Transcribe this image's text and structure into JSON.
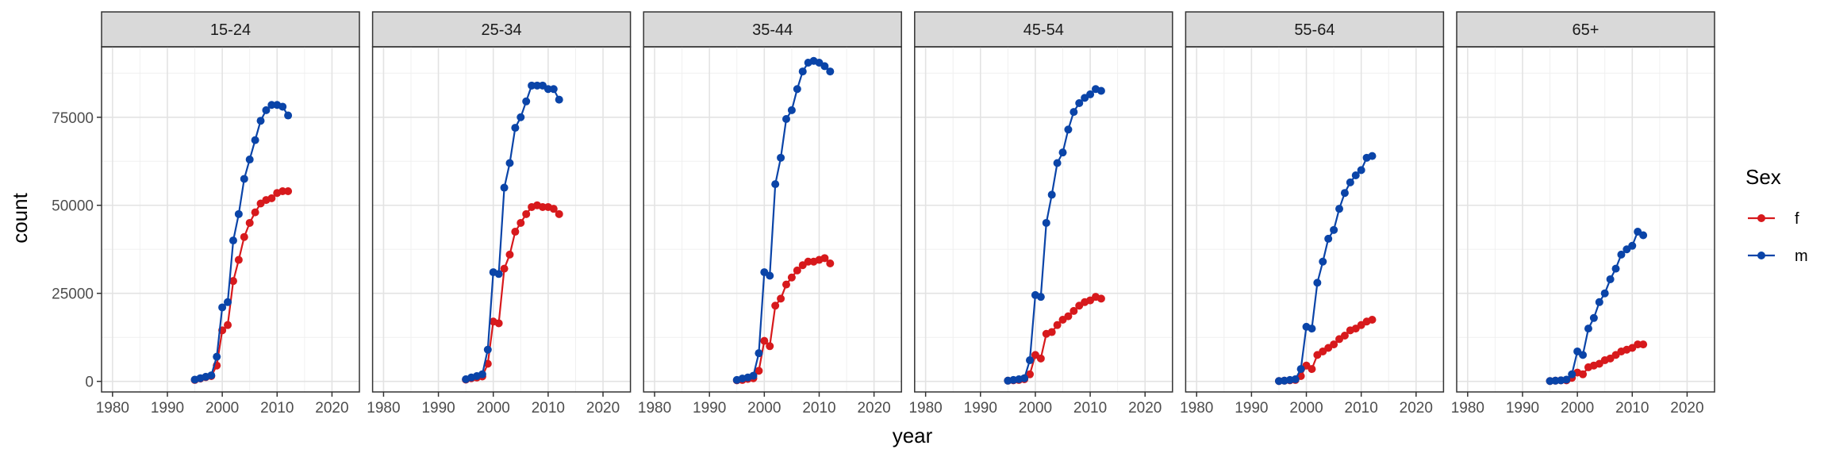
{
  "chart_data": {
    "type": "line",
    "facet_variable": "age group",
    "panels": [
      "15-24",
      "25-34",
      "35-44",
      "45-54",
      "55-64",
      "65+"
    ],
    "xlabel": "year",
    "ylabel": "count",
    "xlim": [
      1978,
      2025
    ],
    "ylim": [
      -3000,
      95000
    ],
    "x_ticks": [
      1980,
      1990,
      2000,
      2010,
      2020
    ],
    "y_ticks": [
      0,
      25000,
      50000,
      75000
    ],
    "grid": true,
    "legend": {
      "title": "Sex",
      "position": "right"
    },
    "x": [
      1995,
      1996,
      1997,
      1998,
      1999,
      2000,
      2001,
      2002,
      2003,
      2004,
      2005,
      2006,
      2007,
      2008,
      2009,
      2010,
      2011,
      2012
    ],
    "series": [
      {
        "name": "f",
        "color": "#d7191c",
        "facets": {
          "15-24": [
            400,
            800,
            1200,
            1500,
            4500,
            14500,
            16000,
            28500,
            34500,
            41000,
            45000,
            48000,
            50500,
            51500,
            52000,
            53500,
            54000,
            54000
          ],
          "25-34": [
            500,
            900,
            1100,
            1400,
            5000,
            17000,
            16500,
            32000,
            36000,
            42500,
            45000,
            47500,
            49500,
            50000,
            49500,
            49500,
            49000,
            47500
          ],
          "35-44": [
            300,
            400,
            700,
            900,
            3000,
            11500,
            10000,
            21500,
            23500,
            27500,
            29500,
            31500,
            33000,
            34000,
            34000,
            34500,
            35000,
            33500
          ],
          "45-54": [
            200,
            300,
            400,
            600,
            2000,
            7500,
            6500,
            13500,
            14000,
            16000,
            17500,
            18500,
            20000,
            21500,
            22500,
            23000,
            24000,
            23500
          ],
          "55-64": [
            100,
            200,
            300,
            400,
            1500,
            4500,
            3500,
            7500,
            8500,
            9500,
            10500,
            12000,
            13000,
            14500,
            15000,
            16000,
            17000,
            17500
          ],
          "65+": [
            100,
            200,
            300,
            300,
            1000,
            2500,
            2000,
            4000,
            4500,
            5000,
            6000,
            6500,
            7500,
            8500,
            9000,
            9500,
            10500,
            10500
          ]
        }
      },
      {
        "name": "m",
        "color": "#0a44a8",
        "facets": {
          "15-24": [
            500,
            900,
            1300,
            1700,
            7000,
            21000,
            22500,
            40000,
            47500,
            57500,
            63000,
            68500,
            74000,
            77000,
            78500,
            78500,
            78000,
            75500
          ],
          "25-34": [
            600,
            1100,
            1500,
            2000,
            9000,
            31000,
            30500,
            55000,
            62000,
            72000,
            75000,
            79500,
            84000,
            84000,
            84000,
            83000,
            83000,
            80000
          ],
          "35-44": [
            400,
            800,
            1100,
            1600,
            8000,
            31000,
            30000,
            56000,
            63500,
            74500,
            77000,
            83000,
            88000,
            90500,
            91000,
            90500,
            89500,
            88000
          ],
          "45-54": [
            200,
            400,
            600,
            900,
            6000,
            24500,
            24000,
            45000,
            53000,
            62000,
            65000,
            71500,
            76500,
            79000,
            80500,
            81500,
            83000,
            82500
          ],
          "55-64": [
            100,
            200,
            400,
            600,
            3500,
            15500,
            15000,
            28000,
            34000,
            40500,
            43000,
            49000,
            53500,
            56500,
            58500,
            60000,
            63500,
            64000
          ],
          "65+": [
            100,
            200,
            300,
            500,
            2000,
            8500,
            7500,
            15000,
            18000,
            22500,
            25000,
            29000,
            32000,
            36000,
            37500,
            38500,
            42500,
            41500
          ]
        }
      }
    ]
  }
}
